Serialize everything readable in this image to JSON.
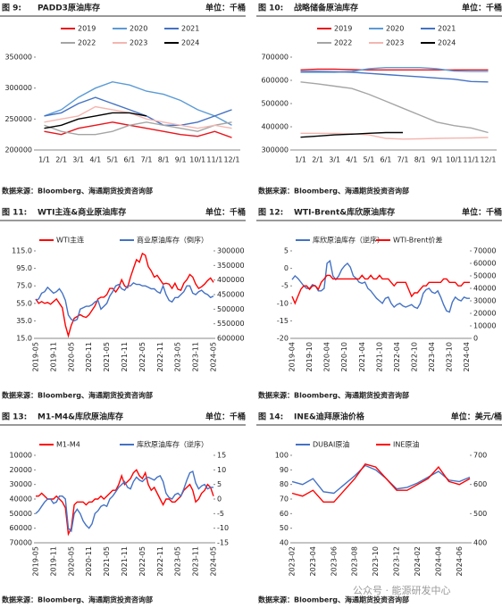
{
  "watermark": "公众号 · 能源研发中心",
  "chart_data": [
    {
      "type": "line",
      "figure": "图 9:",
      "title": "PADD3原油库存",
      "unit": "单位：千桶",
      "source": "数据来源：Bloomberg、海通期货投资咨询部",
      "categories": [
        "1/1",
        "2/1",
        "3/1",
        "4/1",
        "5/1",
        "6/1",
        "7/1",
        "8/1",
        "9/1",
        "10/1",
        "11/1",
        "12/1"
      ],
      "ylim": [
        200000,
        350000
      ],
      "yticks": [
        200000,
        250000,
        300000,
        350000
      ],
      "series": [
        {
          "name": "2019",
          "color": "#e8141c",
          "values": [
            230000,
            225000,
            235000,
            240000,
            245000,
            240000,
            235000,
            230000,
            225000,
            222000,
            230000,
            220000
          ]
        },
        {
          "name": "2020",
          "color": "#5b9bd5",
          "values": [
            255000,
            265000,
            285000,
            300000,
            310000,
            305000,
            295000,
            290000,
            280000,
            265000,
            255000,
            240000
          ]
        },
        {
          "name": "2021",
          "color": "#4472c4",
          "values": [
            255000,
            260000,
            275000,
            285000,
            275000,
            265000,
            255000,
            240000,
            240000,
            245000,
            255000,
            265000
          ]
        },
        {
          "name": "2022",
          "color": "#a5a5a5",
          "values": [
            240000,
            230000,
            225000,
            225000,
            230000,
            240000,
            245000,
            240000,
            235000,
            230000,
            240000,
            245000
          ]
        },
        {
          "name": "2023",
          "color": "#f4b6b0",
          "values": [
            245000,
            250000,
            255000,
            270000,
            265000,
            260000,
            250000,
            245000,
            240000,
            235000,
            240000,
            235000
          ]
        },
        {
          "name": "2024",
          "color": "#000000",
          "values": [
            235000,
            240000,
            250000,
            255000,
            260000,
            260000,
            255000,
            null,
            null,
            null,
            null,
            null
          ]
        }
      ]
    },
    {
      "type": "line",
      "figure": "图 10:",
      "title": "战略储备原油库存",
      "unit": "单位：千桶",
      "source": "数据来源：Bloomberg、海通期货投资咨询部",
      "categories": [
        "1/1",
        "2/1",
        "3/1",
        "4/1",
        "5/1",
        "6/1",
        "7/1",
        "8/1",
        "9/1",
        "10/1",
        "11/1",
        "12/1"
      ],
      "ylim": [
        300000,
        700000
      ],
      "yticks": [
        300000,
        400000,
        500000,
        600000,
        700000
      ],
      "series": [
        {
          "name": "2019",
          "color": "#e8141c",
          "values": [
            645000,
            648000,
            648000,
            646000,
            645000,
            645000,
            645000,
            645000,
            645000,
            645000,
            645000,
            645000
          ]
        },
        {
          "name": "2020",
          "color": "#5b9bd5",
          "values": [
            635000,
            635000,
            635000,
            638000,
            650000,
            655000,
            655000,
            655000,
            650000,
            640000,
            638000,
            638000
          ]
        },
        {
          "name": "2021",
          "color": "#4472c4",
          "values": [
            638000,
            638000,
            637000,
            635000,
            630000,
            625000,
            620000,
            615000,
            610000,
            605000,
            595000,
            593000
          ]
        },
        {
          "name": "2022",
          "color": "#a5a5a5",
          "values": [
            593000,
            585000,
            575000,
            565000,
            540000,
            510000,
            480000,
            450000,
            420000,
            405000,
            395000,
            375000
          ]
        },
        {
          "name": "2023",
          "color": "#f4b6b0",
          "values": [
            372000,
            372000,
            371000,
            370000,
            365000,
            350000,
            347000,
            348000,
            350000,
            351000,
            352000,
            354000
          ]
        },
        {
          "name": "2024",
          "color": "#000000",
          "values": [
            355000,
            360000,
            365000,
            368000,
            372000,
            375000,
            375000,
            null,
            null,
            null,
            null,
            null
          ]
        }
      ]
    },
    {
      "type": "line",
      "figure": "图 11:",
      "title": "WTI主连&商业原油库存",
      "unit": "单位：千桶",
      "source": "数据来源：Bloomberg、海通期货投资咨询部",
      "categories": [
        "2019-05",
        null,
        null,
        null,
        null,
        null,
        "2019-11",
        null,
        null,
        null,
        null,
        null,
        "2020-05",
        null,
        null,
        null,
        null,
        null,
        "2020-11",
        null,
        null,
        null,
        null,
        null,
        "2021-05",
        null,
        null,
        null,
        null,
        null,
        "2021-11",
        null,
        null,
        null,
        null,
        null,
        "2022-05",
        null,
        null,
        null,
        null,
        null,
        "2022-11",
        null,
        null,
        null,
        null,
        null,
        "2023-05",
        null,
        null,
        null,
        null,
        null,
        "2023-11",
        null,
        null,
        null,
        null,
        null,
        "2024-05"
      ],
      "ylim": [
        15,
        115
      ],
      "yticks": [
        {
          "value": 15,
          "label": "15.0"
        },
        {
          "value": 35,
          "label": "35.0"
        },
        {
          "value": 55,
          "label": "55.0"
        },
        {
          "value": 75,
          "label": "75.0"
        },
        {
          "value": 95,
          "label": "95.0"
        },
        {
          "value": 115,
          "label": "115.0"
        }
      ],
      "y2lim": [
        600000,
        300000
      ],
      "y2ticks": [
        300000,
        350000,
        400000,
        450000,
        500000,
        550000,
        600000
      ],
      "series": [
        {
          "name": "WTI主连",
          "color": "#ff0000",
          "values": [
            60,
            55,
            57,
            55,
            56,
            54,
            57,
            60,
            55,
            50,
            30,
            18,
            30,
            38,
            40,
            42,
            40,
            39,
            42,
            47,
            52,
            60,
            62,
            62,
            65,
            72,
            72,
            68,
            73,
            82,
            75,
            73,
            85,
            95,
            105,
            102,
            112,
            110,
            97,
            92,
            85,
            87,
            82,
            77,
            78,
            77,
            72,
            78,
            71,
            70,
            78,
            82,
            88,
            85,
            77,
            72,
            74,
            77,
            81,
            84,
            79
          ]
        },
        {
          "name": "商业原油库存（倒序）",
          "color": "#4472c4",
          "axis": "y2",
          "values": [
            470000,
            465000,
            445000,
            440000,
            425000,
            435000,
            445000,
            440000,
            430000,
            445000,
            470000,
            520000,
            535000,
            540000,
            535000,
            500000,
            495000,
            490000,
            490000,
            485000,
            475000,
            470000,
            500000,
            490000,
            480000,
            455000,
            440000,
            420000,
            415000,
            430000,
            435000,
            420000,
            420000,
            410000,
            415000,
            415000,
            420000,
            420000,
            425000,
            430000,
            430000,
            440000,
            445000,
            420000,
            450000,
            470000,
            475000,
            460000,
            460000,
            450000,
            440000,
            420000,
            420000,
            445000,
            450000,
            440000,
            435000,
            445000,
            450000,
            460000,
            455000
          ]
        }
      ]
    },
    {
      "type": "line",
      "figure": "图 12:",
      "title": "WTI-Brent&库欣原油库存",
      "unit": "单位：千桶",
      "source": "数据来源：Bloomberg、海通期货投资咨询部",
      "categories": [
        "2019-04",
        null,
        null,
        null,
        null,
        null,
        "2019-10",
        null,
        null,
        null,
        null,
        null,
        "2020-04",
        null,
        null,
        null,
        null,
        null,
        "2020-10",
        null,
        null,
        null,
        null,
        null,
        "2021-04",
        null,
        null,
        null,
        null,
        null,
        "2021-10",
        null,
        null,
        null,
        null,
        null,
        "2022-04",
        null,
        null,
        null,
        null,
        null,
        "2022-10",
        null,
        null,
        null,
        null,
        null,
        "2023-04",
        null,
        null,
        null,
        null,
        null,
        "2023-10",
        null,
        null,
        null,
        null,
        null,
        "2024-04",
        null
      ],
      "ylim": [
        -20,
        5
      ],
      "yticks": [
        -20,
        -15,
        -10,
        -5,
        0,
        5
      ],
      "y2lim": [
        0,
        70000
      ],
      "y2ticks": [
        0,
        10000,
        20000,
        30000,
        40000,
        50000,
        60000,
        70000
      ],
      "series": [
        {
          "name": "库欣原油库存（逆序）",
          "color": "#4472c4",
          "axis": "y2",
          "values": [
            47000,
            50000,
            48000,
            45000,
            42000,
            40000,
            40000,
            43000,
            42000,
            38000,
            38000,
            40000,
            60000,
            62000,
            50000,
            47000,
            50000,
            55000,
            58000,
            60000,
            57000,
            50000,
            48000,
            45000,
            44000,
            45000,
            40000,
            38000,
            35000,
            32000,
            30000,
            28000,
            32000,
            33000,
            28000,
            25000,
            27000,
            28000,
            26000,
            25000,
            26000,
            27000,
            25000,
            24000,
            28000,
            36000,
            39000,
            40000,
            37000,
            36000,
            38000,
            33000,
            27000,
            22000,
            21000,
            29000,
            33000,
            31000,
            30000,
            33000,
            32000,
            32000
          ]
        },
        {
          "name": "WTI-Brent价差",
          "color": "#ff0000",
          "values": [
            -8,
            -10,
            -8,
            -6,
            -5,
            -5,
            -6,
            -5,
            -5,
            -6,
            -4,
            -3,
            -2,
            -2,
            -3,
            -3,
            -3,
            -3,
            -3,
            -3,
            -3,
            -3,
            -3,
            -3,
            -2,
            -3,
            -3,
            -2,
            -3,
            -3,
            -2,
            -3,
            -3,
            -3,
            -4,
            -5,
            -4,
            -4,
            -4,
            -4,
            -6,
            -8,
            -7,
            -7,
            -6,
            -5,
            -5,
            -4,
            -4,
            -4,
            -4,
            -4,
            -3,
            -3,
            -4,
            -4,
            -4,
            -5,
            -5,
            -4,
            -4,
            -4
          ]
        }
      ]
    },
    {
      "type": "line",
      "figure": "图 13:",
      "title": "M1-M4&库欣原油库存",
      "unit": "单位：千桶",
      "source": "数据来源：Bloomberg、海通期货投资咨询部",
      "categories": [
        "2019-05",
        null,
        null,
        null,
        null,
        null,
        "2019-11",
        null,
        null,
        null,
        null,
        null,
        "2020-05",
        null,
        null,
        null,
        null,
        null,
        "2020-11",
        null,
        null,
        null,
        null,
        null,
        "2021-05",
        null,
        null,
        null,
        null,
        null,
        "2021-11",
        null,
        null,
        null,
        null,
        null,
        "2022-05",
        null,
        null,
        null,
        null,
        null,
        "2022-11",
        null,
        null,
        null,
        null,
        null,
        "2023-05",
        null,
        null,
        null,
        null,
        null,
        "2023-11",
        null,
        null,
        null,
        null,
        null,
        "2024-05"
      ],
      "ylim": [
        70000,
        10000
      ],
      "yticks": [
        10000,
        20000,
        30000,
        40000,
        50000,
        60000,
        70000
      ],
      "y2lim": [
        -15,
        15
      ],
      "y2ticks": [
        -15,
        -10,
        -5,
        0,
        5,
        10,
        15
      ],
      "series": [
        {
          "name": "M1-M4",
          "color": "#ff0000",
          "axis": "y2",
          "values": [
            1,
            1,
            2,
            1,
            0,
            0,
            0,
            1,
            0,
            -1,
            -3,
            -12,
            -10,
            -2,
            -1,
            -1,
            -1,
            -2,
            -1,
            -1,
            0,
            0,
            1,
            0,
            1,
            2,
            3,
            3,
            5,
            8,
            5,
            6,
            7,
            9,
            10,
            8,
            7,
            9,
            5,
            3,
            4,
            2,
            0,
            -2,
            0,
            0,
            -1,
            -1,
            0,
            1,
            3,
            4,
            5,
            3,
            -1,
            0,
            2,
            3,
            5,
            4,
            1
          ]
        },
        {
          "name": "库欣原油库存（逆序）",
          "color": "#4472c4",
          "values": [
            50000,
            48000,
            45000,
            42000,
            40000,
            40000,
            43000,
            42000,
            38000,
            38000,
            40000,
            60000,
            62000,
            50000,
            47000,
            50000,
            55000,
            58000,
            60000,
            57000,
            50000,
            48000,
            45000,
            44000,
            45000,
            40000,
            38000,
            35000,
            32000,
            30000,
            28000,
            32000,
            33000,
            28000,
            25000,
            27000,
            28000,
            26000,
            25000,
            26000,
            27000,
            25000,
            24000,
            28000,
            36000,
            39000,
            40000,
            37000,
            36000,
            38000,
            33000,
            27000,
            22000,
            21000,
            29000,
            33000,
            31000,
            30000,
            33000,
            32000,
            32000
          ]
        }
      ]
    },
    {
      "type": "line",
      "figure": "图 14:",
      "title": "INE&迪拜原油价格",
      "unit": "单位：美元/桶",
      "source": "数据来源：Bloomberg、海通期货投资咨询部",
      "categories": [
        "2023-02",
        null,
        "2023-04",
        null,
        "2023-06",
        null,
        "2023-08",
        null,
        "2023-10",
        null,
        "2023-12",
        null,
        "2024-02",
        null,
        "2024-04",
        null,
        "2024-06",
        null
      ],
      "ylim": [
        40,
        100
      ],
      "yticks": [
        40,
        50,
        60,
        70,
        80,
        90,
        100
      ],
      "y2lim": [
        400,
        700
      ],
      "y2ticks": [
        400,
        500,
        600,
        700
      ],
      "series": [
        {
          "name": "DUBAI原油",
          "color": "#4472c4",
          "values": [
            82,
            80,
            84,
            75,
            74,
            80,
            86,
            93,
            90,
            84,
            77,
            78,
            81,
            85,
            89,
            83,
            82,
            85
          ]
        },
        {
          "name": "INE原油",
          "color": "#ff0000",
          "axis": "y2",
          "values": [
            570,
            560,
            580,
            540,
            540,
            580,
            620,
            670,
            660,
            620,
            580,
            580,
            600,
            620,
            660,
            610,
            600,
            620
          ]
        }
      ]
    }
  ]
}
